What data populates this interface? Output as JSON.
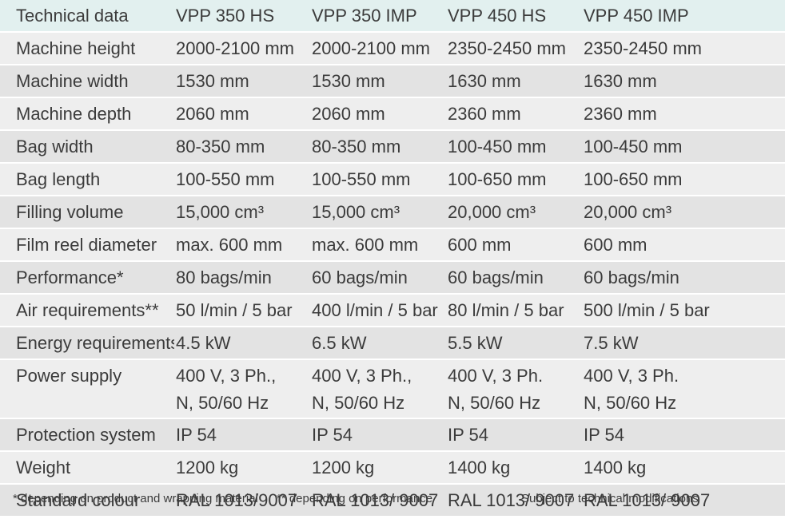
{
  "table": {
    "header": [
      "Technical data",
      "VPP 350 HS",
      "VPP 350 IMP",
      "VPP 450 HS",
      "VPP 450 IMP"
    ],
    "rows": [
      [
        "Machine height",
        "2000-2100 mm",
        "2000-2100 mm",
        "2350-2450 mm",
        "2350-2450 mm"
      ],
      [
        "Machine width",
        "1530 mm",
        "1530 mm",
        "1630 mm",
        "1630 mm"
      ],
      [
        "Machine depth",
        "2060 mm",
        "2060 mm",
        "2360 mm",
        "2360 mm"
      ],
      [
        "Bag width",
        "80-350 mm",
        "80-350 mm",
        "100-450 mm",
        "100-450 mm"
      ],
      [
        "Bag length",
        "100-550 mm",
        "100-550 mm",
        "100-650 mm",
        "100-650 mm"
      ],
      [
        "Filling volume",
        "15,000 cm³",
        "15,000 cm³",
        "20,000 cm³",
        "20,000 cm³"
      ],
      [
        "Film reel diameter",
        "max. 600 mm",
        "max. 600 mm",
        "600 mm",
        "600 mm"
      ],
      [
        "Performance*",
        "80 bags/min",
        "60 bags/min",
        "60 bags/min",
        "60 bags/min"
      ],
      [
        "Air requirements**",
        "50 l/min / 5 bar",
        "400 l/min / 5 bar",
        "80 l/min / 5 bar",
        "500 l/min / 5 bar"
      ],
      [
        "Energy requirements",
        "4.5 kW",
        "6.5 kW",
        "5.5 kW",
        "7.5 kW"
      ],
      [
        "Power supply",
        "400 V, 3 Ph.,\nN, 50/60 Hz",
        "400 V, 3 Ph.,\nN, 50/60 Hz",
        "400 V, 3 Ph.\nN, 50/60 Hz",
        "400 V, 3 Ph.\nN, 50/60 Hz"
      ],
      [
        "Protection system",
        "IP 54",
        "IP 54",
        "IP 54",
        "IP 54"
      ],
      [
        "Weight",
        "1200 kg",
        "1200 kg",
        "1400 kg",
        "1400 kg"
      ],
      [
        "Standard colour",
        "RAL 1013/9007",
        "RAL 1013/ 9007",
        "RAL 1013/ 9007",
        "RAL 1013/ 9007"
      ]
    ]
  },
  "footnotes": {
    "product": "* depending on product and wrapping material",
    "performance": "** depending on performance",
    "modifications": "Subject to technical modifications"
  },
  "colors": {
    "header_background": "#e2f0ef",
    "row_background_light": "#eeeeee",
    "row_background_dark": "#e3e3e3",
    "text": "#3b3b3b"
  }
}
